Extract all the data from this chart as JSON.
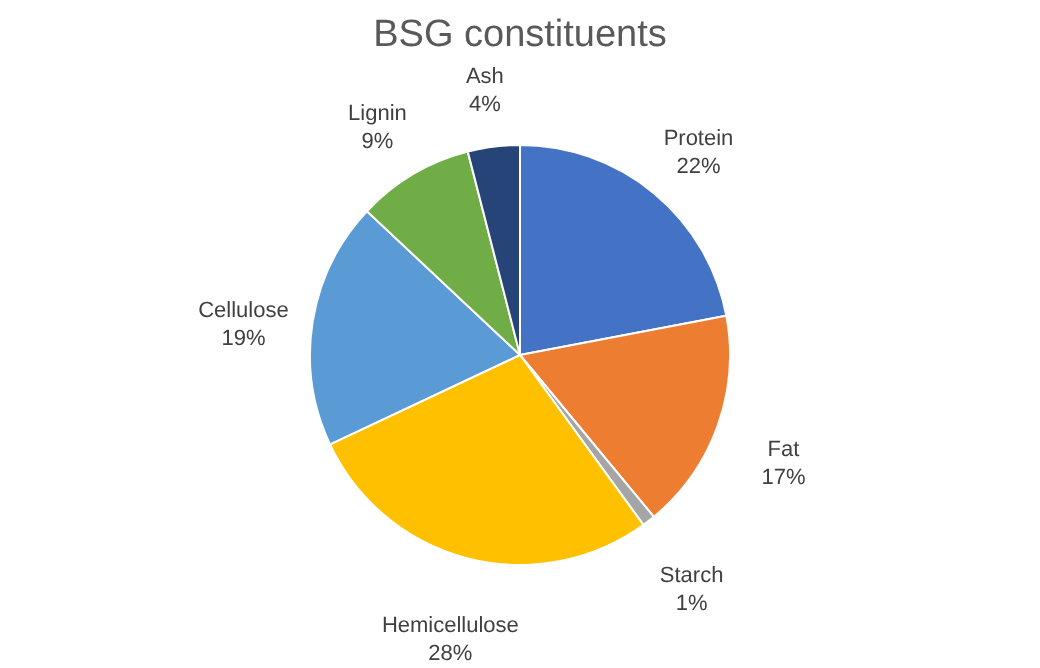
{
  "chart_data": {
    "type": "pie",
    "title": "BSG constituents",
    "categories": [
      "Protein",
      "Fat",
      "Starch",
      "Hemicellulose",
      "Cellulose",
      "Lignin",
      "Ash"
    ],
    "values": [
      22,
      17,
      1,
      28,
      19,
      9,
      4
    ],
    "colors": [
      "#4472c4",
      "#ed7d31",
      "#a5a5a5",
      "#ffc000",
      "#5b9bd5",
      "#70ad47",
      "#264478"
    ],
    "value_labels": [
      "22%",
      "17%",
      "1%",
      "28%",
      "19%",
      "9%",
      "4%"
    ],
    "legend": false
  }
}
